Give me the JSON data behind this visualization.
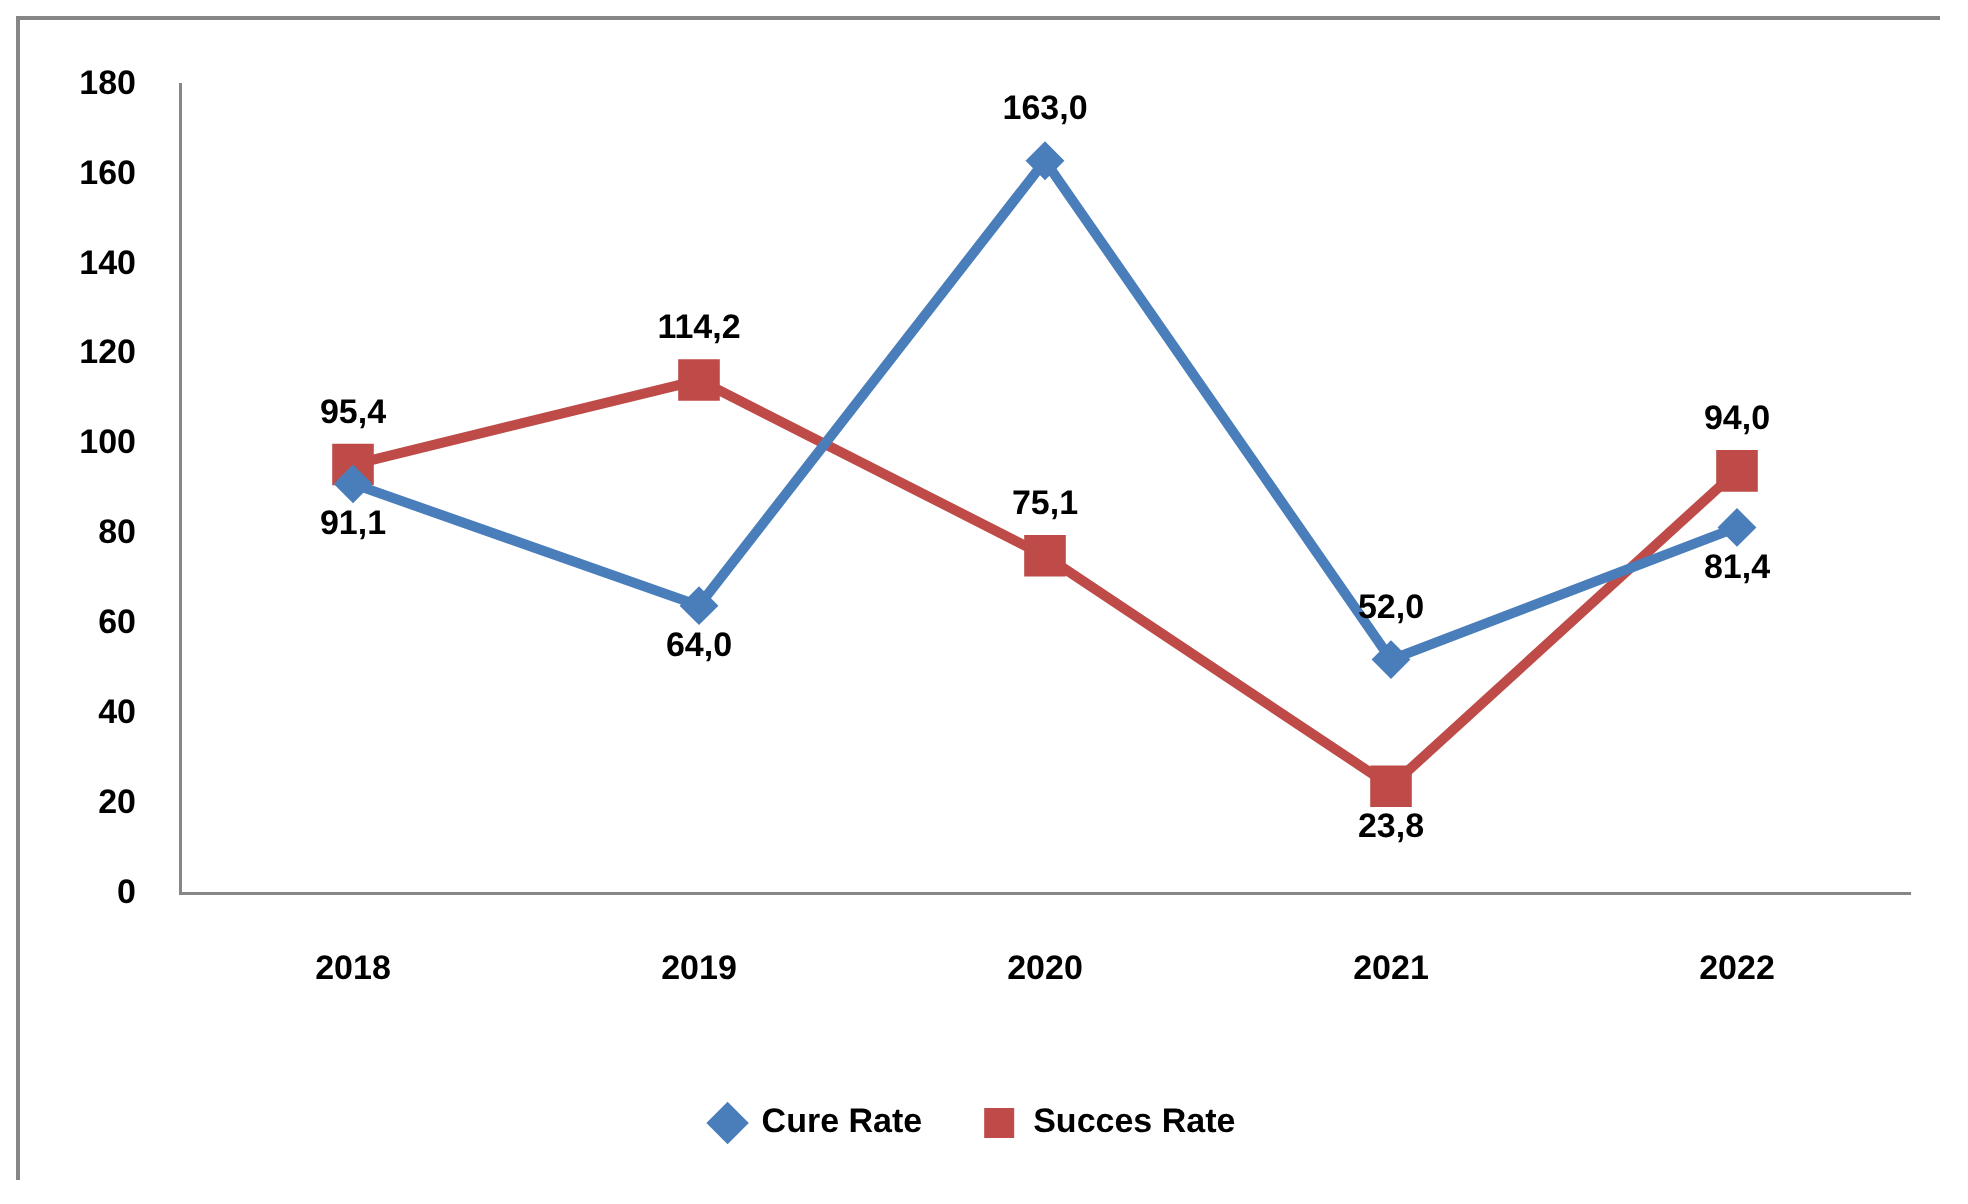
{
  "chart_data": {
    "type": "line",
    "categories": [
      "2018",
      "2019",
      "2020",
      "2021",
      "2022"
    ],
    "series": [
      {
        "name": "Cure Rate",
        "color": "#4a7ebb",
        "marker": "diamond",
        "values": [
          91.1,
          64.0,
          163.0,
          52.0,
          81.4
        ],
        "value_labels": [
          "91,1",
          "64,0",
          "163,0",
          "52,0",
          "81,4"
        ]
      },
      {
        "name": "Succes Rate",
        "color": "#be4b48",
        "marker": "square",
        "values": [
          95.4,
          114.2,
          75.1,
          23.8,
          94.0
        ],
        "value_labels": [
          "95,4",
          "114,2",
          "75,1",
          "23,8",
          "94,0"
        ]
      }
    ],
    "ylim": [
      0,
      180
    ],
    "yticks": [
      0,
      20,
      40,
      60,
      80,
      100,
      120,
      140,
      160,
      180
    ],
    "legend": "bottom",
    "line_style": "solid"
  }
}
